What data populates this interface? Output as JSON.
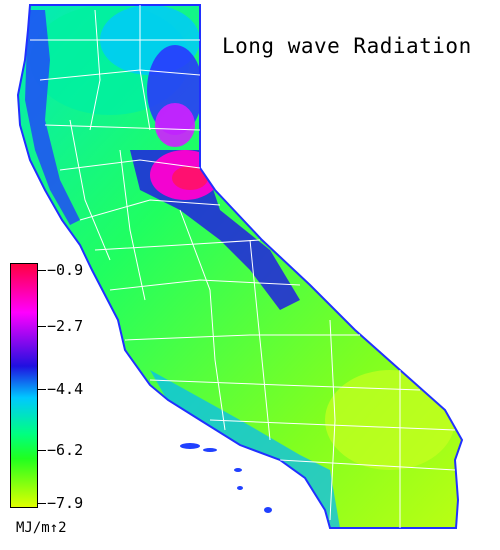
{
  "title": "Long wave Radiation",
  "legend": {
    "ticks": [
      "−0.9",
      "−2.7",
      "−4.4",
      "−6.2",
      "−7.9"
    ],
    "units": "MJ/m↑2",
    "colors": [
      "#ff0040",
      "#ff00ff",
      "#3010e0",
      "#00c8ff",
      "#00ff80",
      "#20ff20",
      "#e0ff00"
    ]
  }
}
